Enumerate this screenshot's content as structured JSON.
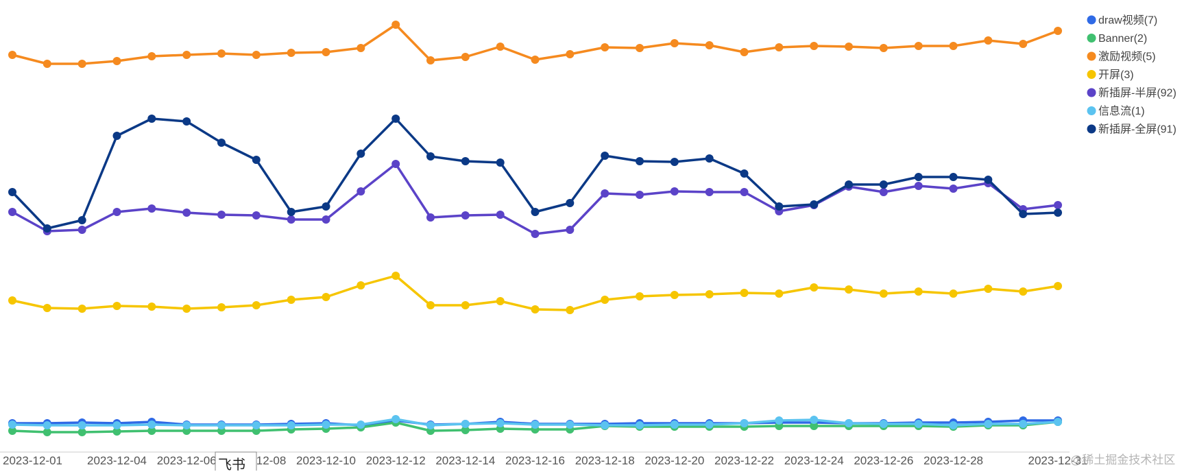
{
  "chart_data": {
    "type": "line",
    "title": "",
    "xlabel": "",
    "ylabel": "",
    "grid": false,
    "legend_position": "right",
    "x": [
      "2023-12-01",
      "2023-12-02",
      "2023-12-03",
      "2023-12-04",
      "2023-12-05",
      "2023-12-06",
      "2023-12-07",
      "2023-12-08",
      "2023-12-09",
      "2023-12-10",
      "2023-12-11",
      "2023-12-12",
      "2023-12-13",
      "2023-12-14",
      "2023-12-15",
      "2023-12-16",
      "2023-12-17",
      "2023-12-18",
      "2023-12-19",
      "2023-12-20",
      "2023-12-21",
      "2023-12-22",
      "2023-12-23",
      "2023-12-24",
      "2023-12-25",
      "2023-12-26",
      "2023-12-27",
      "2023-12-28",
      "2023-12-29",
      "2023-12-30",
      "2023-12-31"
    ],
    "x_tick_labels": [
      "2023-12-01",
      "2023-12-04",
      "2023-12-06",
      "2023-12-08",
      "2023-12-10",
      "2023-12-12",
      "2023-12-14",
      "2023-12-16",
      "2023-12-18",
      "2023-12-20",
      "2023-12-22",
      "2023-12-24",
      "2023-12-26",
      "2023-12-28",
      "2023-12-31"
    ],
    "series": [
      {
        "name": "draw视频(7)",
        "color": "#2f6ae6",
        "values": [
          40,
          40,
          41,
          40,
          42,
          38,
          38,
          38,
          39,
          40,
          37,
          44,
          38,
          39,
          42,
          39,
          39,
          39,
          40,
          40,
          40,
          40,
          41,
          41,
          40,
          40,
          41,
          41,
          42,
          44,
          44
        ]
      },
      {
        "name": "Banner(2)",
        "color": "#40c070",
        "values": [
          29,
          27,
          27,
          28,
          29,
          29,
          29,
          29,
          31,
          32,
          34,
          41,
          29,
          30,
          32,
          31,
          31,
          36,
          35,
          35,
          35,
          35,
          36,
          36,
          36,
          36,
          36,
          35,
          37,
          37,
          42
        ]
      },
      {
        "name": "激励视频(5)",
        "color": "#f58a1f",
        "values": [
          577,
          564,
          564,
          568,
          575,
          577,
          579,
          577,
          580,
          581,
          587,
          621,
          569,
          574,
          589,
          570,
          578,
          588,
          587,
          594,
          591,
          581,
          588,
          590,
          589,
          587,
          590,
          590,
          598,
          593,
          612
        ]
      },
      {
        "name": "开屏(3)",
        "color": "#f6c500",
        "values": [
          219,
          208,
          207,
          211,
          210,
          207,
          209,
          212,
          220,
          224,
          241,
          255,
          212,
          212,
          218,
          206,
          205,
          220,
          225,
          227,
          228,
          230,
          229,
          238,
          235,
          229,
          232,
          229,
          236,
          232,
          240
        ]
      },
      {
        "name": "新插屏-半屏(92)",
        "color": "#5b43c8",
        "values": [
          348,
          320,
          322,
          348,
          353,
          347,
          344,
          343,
          337,
          337,
          378,
          418,
          340,
          343,
          344,
          316,
          322,
          375,
          373,
          378,
          377,
          377,
          349,
          358,
          385,
          377,
          386,
          382,
          390,
          352,
          358
        ]
      },
      {
        "name": "信息流(1)",
        "color": "#5bc3f0",
        "values": [
          38,
          37,
          37,
          37,
          38,
          37,
          37,
          37,
          37,
          38,
          38,
          46,
          37,
          39,
          40,
          38,
          38,
          37,
          37,
          38,
          38,
          40,
          44,
          45,
          40,
          39,
          39,
          37,
          39,
          39,
          42
        ]
      },
      {
        "name": "新插屏-全屏(91)",
        "color": "#0b3986",
        "values": [
          377,
          324,
          336,
          459,
          484,
          480,
          449,
          424,
          348,
          356,
          433,
          484,
          429,
          422,
          420,
          348,
          361,
          430,
          422,
          421,
          426,
          404,
          356,
          359,
          388,
          388,
          399,
          399,
          395,
          345,
          347
        ]
      }
    ],
    "ylim": [
      0,
      657
    ]
  },
  "overlay": {
    "popup_label": "飞书",
    "watermark": "@稀土掘金技术社区"
  }
}
